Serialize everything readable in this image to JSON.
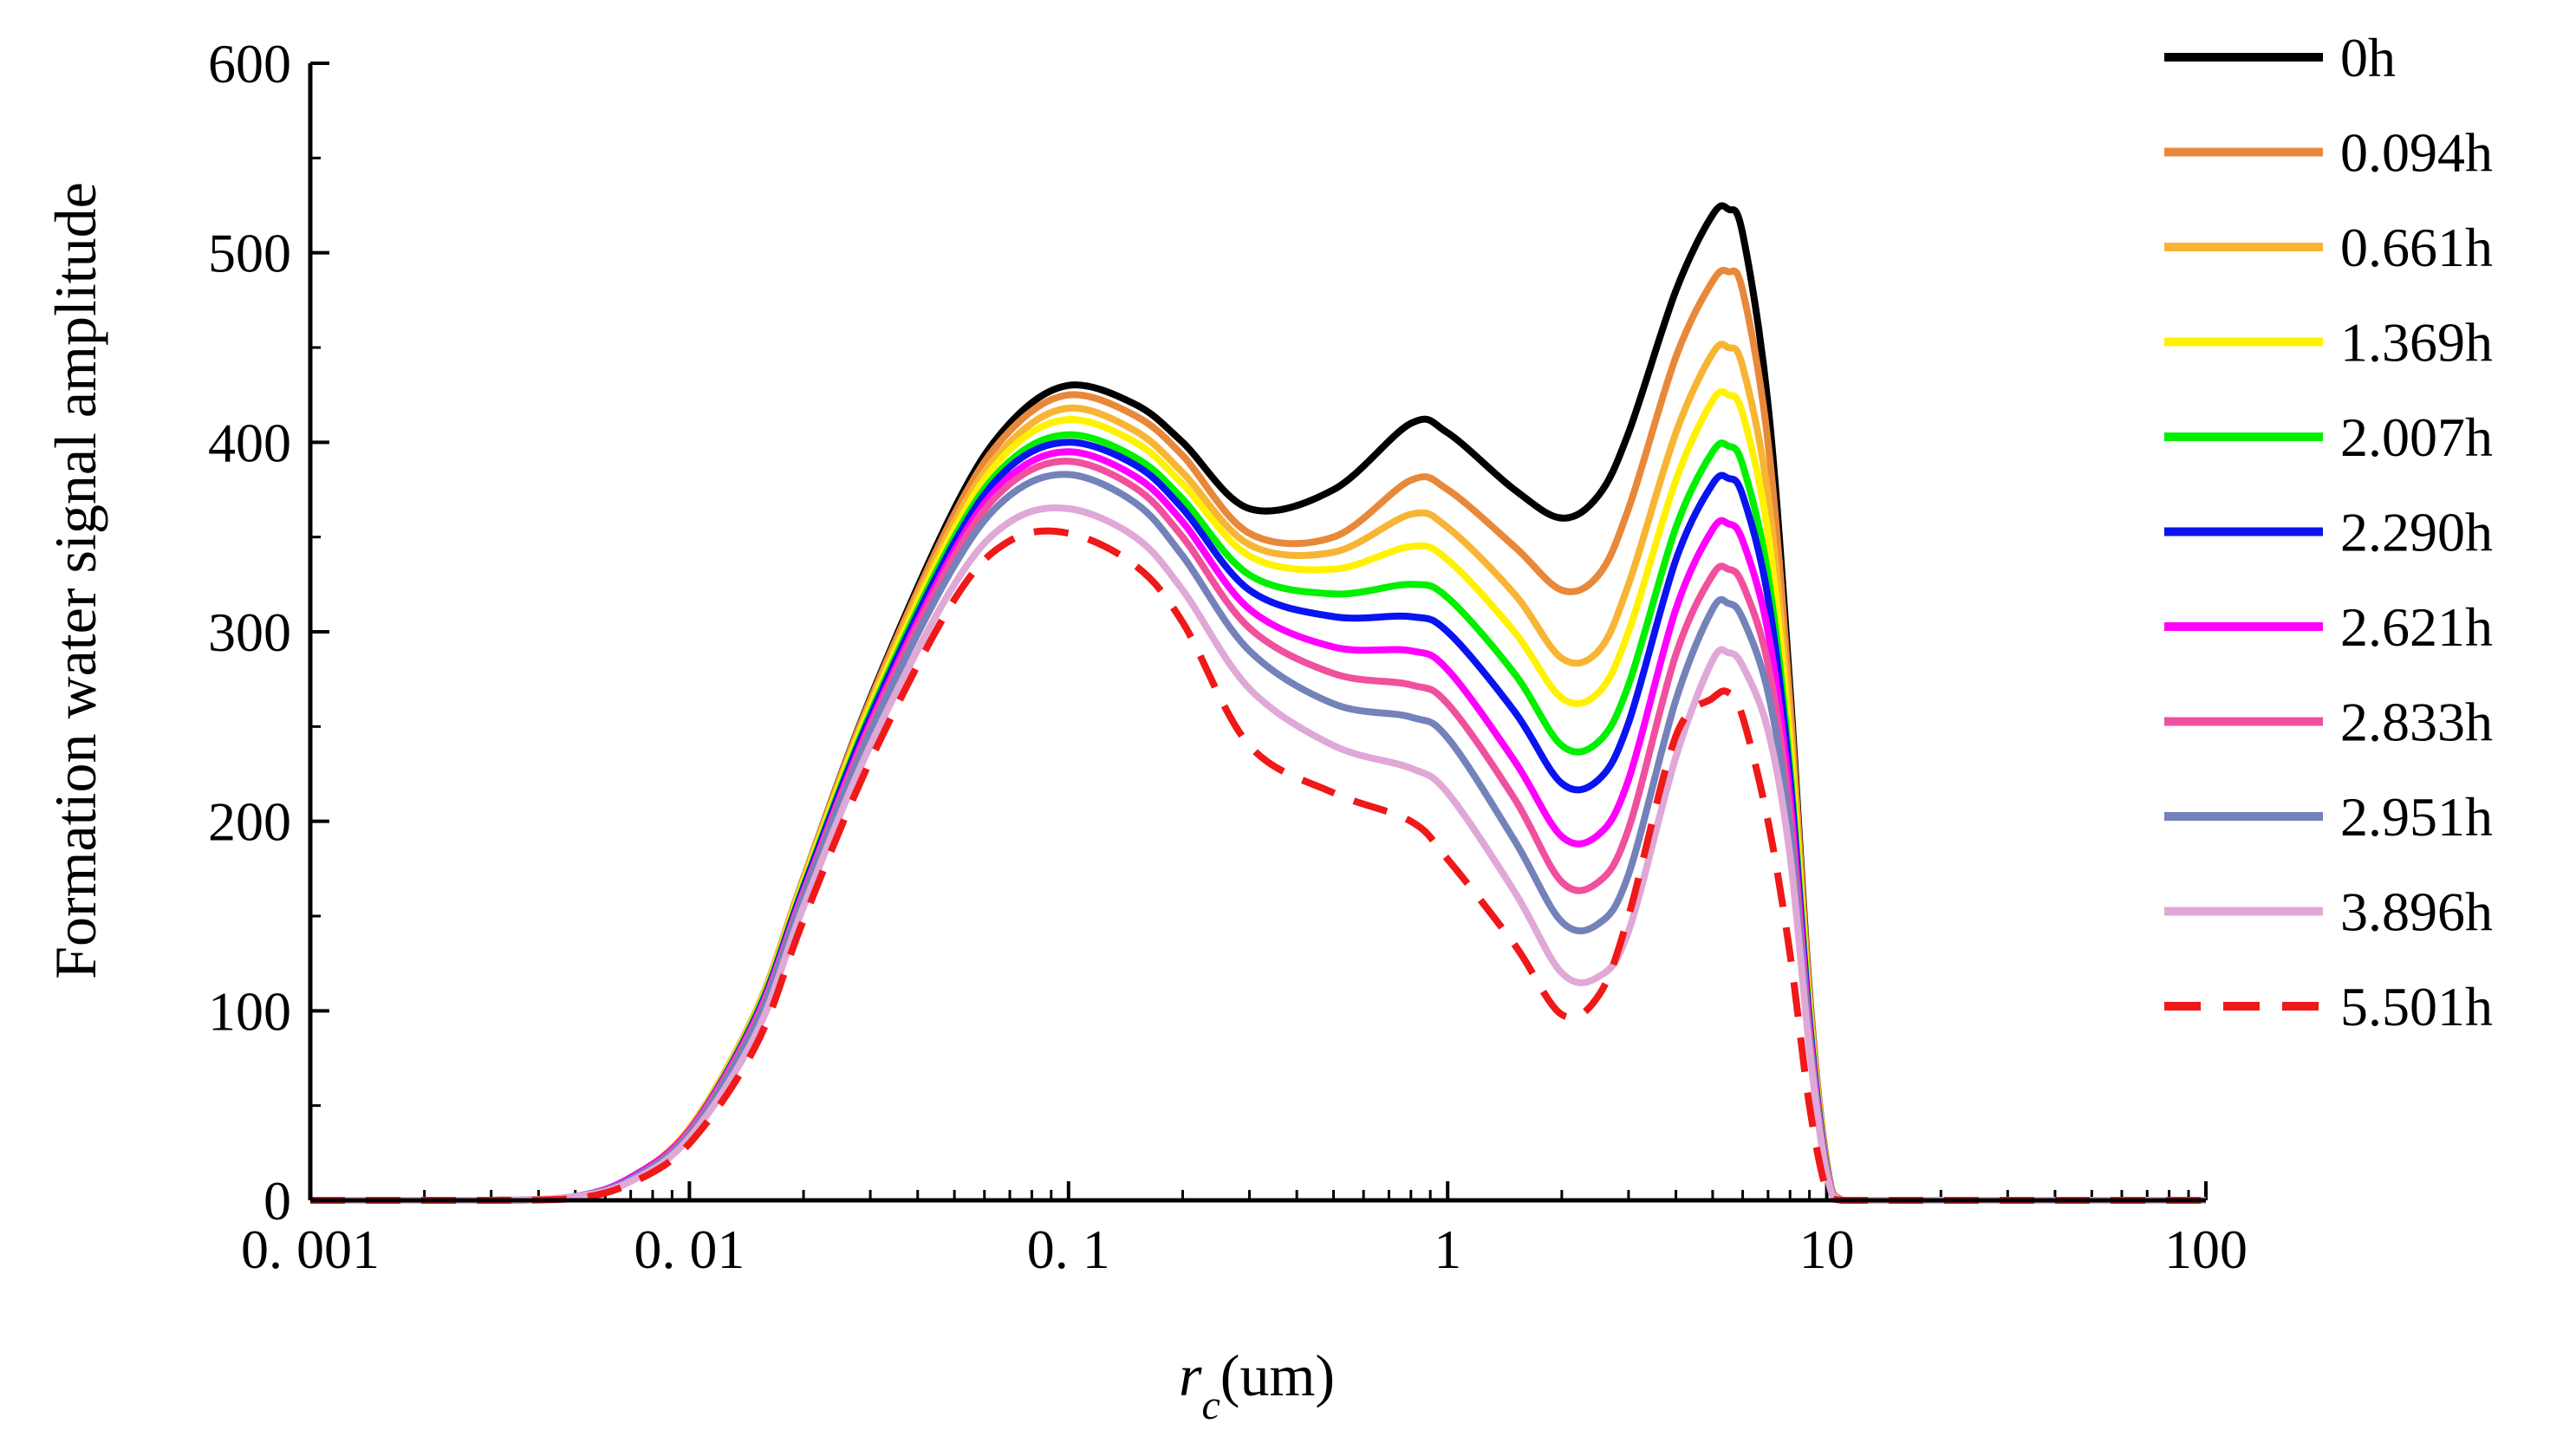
{
  "chart_data": {
    "type": "line",
    "title": "",
    "xlabel_main": "r",
    "xlabel_sub": "c",
    "xlabel_unit": "(um)",
    "ylabel": "Formation water signal amplitude",
    "xscale": "log",
    "xlim": [
      0.001,
      100
    ],
    "ylim": [
      0,
      600
    ],
    "x_ticks": [
      0.001,
      0.01,
      0.1,
      1,
      10,
      100
    ],
    "x_tick_labels": [
      "0. 001",
      "0. 01",
      "0. 1",
      "1",
      "10",
      "100"
    ],
    "y_ticks": [
      0,
      100,
      200,
      300,
      400,
      500,
      600
    ],
    "y_tick_labels": [
      "0",
      "100",
      "200",
      "300",
      "400",
      "500",
      "600"
    ],
    "legend_position": "right",
    "x": [
      0.001,
      0.003,
      0.005,
      0.007,
      0.01,
      0.015,
      0.02,
      0.03,
      0.05,
      0.07,
      0.1,
      0.15,
      0.2,
      0.3,
      0.5,
      0.8,
      1.0,
      1.5,
      2.0,
      2.5,
      3.0,
      4.0,
      5.0,
      5.5,
      6.0,
      7.0,
      8.0,
      9.0,
      10.0,
      11.0,
      15.0,
      30.0,
      100.0
    ],
    "series": [
      {
        "name": "0h",
        "color": "#000000",
        "dashed": false,
        "values": [
          0,
          0,
          2,
          12,
          38,
          100,
          170,
          265,
          365,
          410,
          430,
          420,
          400,
          365,
          375,
          410,
          405,
          375,
          360,
          372,
          405,
          480,
          520,
          523,
          510,
          420,
          270,
          110,
          20,
          0,
          0,
          0,
          0
        ]
      },
      {
        "name": "0.094h",
        "color": "#E8883A",
        "dashed": false,
        "values": [
          0,
          0,
          2,
          12,
          38,
          100,
          170,
          264,
          362,
          406,
          425,
          414,
          393,
          352,
          350,
          380,
          375,
          345,
          322,
          330,
          365,
          445,
          485,
          490,
          480,
          400,
          262,
          108,
          20,
          0,
          0,
          0,
          0
        ]
      },
      {
        "name": "0.661h",
        "color": "#F7B533",
        "dashed": false,
        "values": [
          0,
          0,
          2,
          12,
          38,
          100,
          169,
          262,
          358,
          400,
          418,
          406,
          384,
          346,
          342,
          362,
          355,
          320,
          286,
          290,
          325,
          405,
          447,
          450,
          440,
          372,
          250,
          104,
          19,
          0,
          0,
          0,
          0
        ]
      },
      {
        "name": "1.369h",
        "color": "#FFF200",
        "dashed": false,
        "values": [
          0,
          0,
          2,
          12,
          38,
          99,
          168,
          260,
          354,
          396,
          412,
          400,
          378,
          340,
          333,
          345,
          338,
          300,
          265,
          268,
          300,
          380,
          422,
          425,
          415,
          352,
          240,
          100,
          18,
          0,
          0,
          0,
          0
        ]
      },
      {
        "name": "2.007h",
        "color": "#00F000",
        "dashed": false,
        "values": [
          0,
          0,
          2,
          12,
          37,
          98,
          166,
          257,
          350,
          390,
          404,
          392,
          370,
          330,
          320,
          325,
          318,
          278,
          240,
          242,
          272,
          355,
          395,
          398,
          388,
          330,
          228,
          96,
          17,
          0,
          0,
          0,
          0
        ]
      },
      {
        "name": "2.290h",
        "color": "#0A14F0",
        "dashed": false,
        "values": [
          0,
          0,
          2,
          12,
          37,
          97,
          165,
          255,
          347,
          387,
          400,
          388,
          365,
          322,
          308,
          308,
          300,
          258,
          220,
          222,
          252,
          338,
          378,
          381,
          372,
          318,
          222,
          94,
          17,
          0,
          0,
          0,
          0
        ]
      },
      {
        "name": "2.621h",
        "color": "#FF00FF",
        "dashed": false,
        "values": [
          0,
          0,
          2,
          12,
          37,
          96,
          163,
          252,
          343,
          382,
          395,
          382,
          358,
          312,
          292,
          290,
          280,
          232,
          192,
          193,
          222,
          312,
          354,
          357,
          348,
          300,
          212,
          90,
          16,
          0,
          0,
          0,
          0
        ]
      },
      {
        "name": "2.833h",
        "color": "#F0509E",
        "dashed": false,
        "values": [
          0,
          0,
          2,
          11,
          36,
          95,
          162,
          250,
          340,
          378,
          390,
          376,
          350,
          302,
          278,
          272,
          262,
          212,
          168,
          168,
          196,
          288,
          330,
          333,
          325,
          283,
          203,
          87,
          16,
          0,
          0,
          0,
          0
        ]
      },
      {
        "name": "2.951h",
        "color": "#7482BA",
        "dashed": false,
        "values": [
          0,
          0,
          2,
          11,
          35,
          93,
          160,
          247,
          335,
          372,
          383,
          368,
          340,
          290,
          262,
          255,
          244,
          190,
          147,
          146,
          172,
          264,
          312,
          315,
          307,
          268,
          195,
          84,
          15,
          0,
          0,
          0,
          0
        ]
      },
      {
        "name": "3.896h",
        "color": "#E0A8D6",
        "dashed": false,
        "values": [
          0,
          0,
          2,
          10,
          33,
          88,
          155,
          240,
          325,
          358,
          365,
          350,
          322,
          270,
          240,
          228,
          215,
          163,
          120,
          118,
          142,
          234,
          285,
          289,
          282,
          248,
          182,
          80,
          14,
          0,
          0,
          0,
          0
        ]
      },
      {
        "name": "5.501h",
        "color": "#F01818",
        "dashed": true,
        "values": [
          0,
          0,
          1,
          9,
          30,
          82,
          148,
          232,
          317,
          348,
          352,
          335,
          305,
          240,
          215,
          200,
          180,
          135,
          98,
          108,
          150,
          245,
          265,
          268,
          255,
          200,
          130,
          50,
          5,
          0,
          0,
          0,
          0
        ]
      }
    ]
  }
}
